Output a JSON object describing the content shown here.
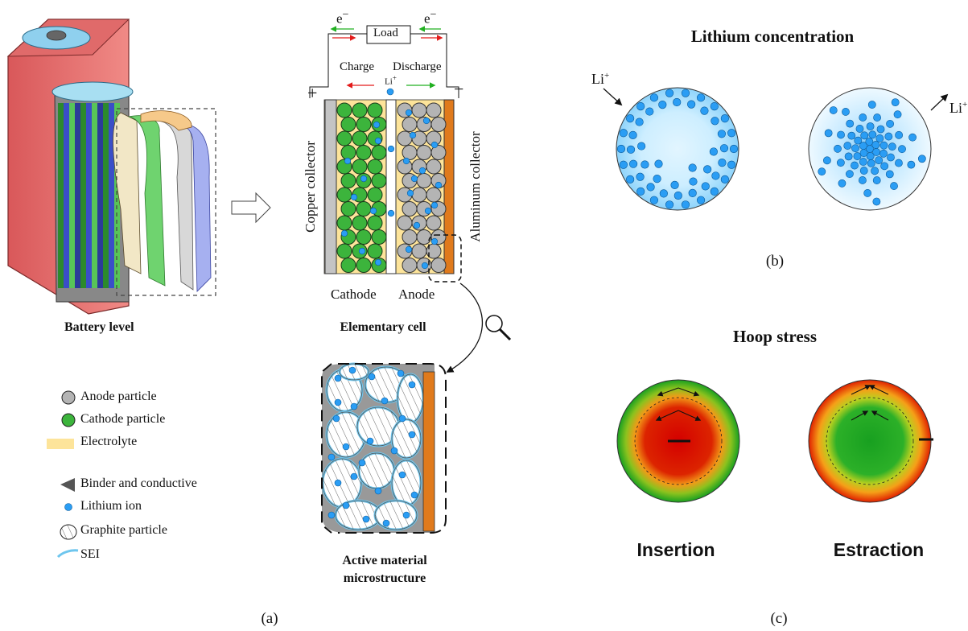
{
  "panel_a": {
    "label": "(a)",
    "battery_level": "Battery level",
    "elementary_cell": "Elementary cell",
    "microstructure": [
      "Active material",
      "microstructure"
    ],
    "circuit": {
      "load": "Load",
      "electron_left": "e",
      "electron_right": "e",
      "charge": "Charge",
      "discharge": "Discharge",
      "li_ion": "Li",
      "plus": "+",
      "minus": "−"
    },
    "copper_collector": "Copper collector",
    "aluminum_collector": "Aluminum collector",
    "cathode": "Cathode",
    "anode": "Anode",
    "legend": [
      {
        "icon": "anode-particle-icon",
        "label": "Anode particle",
        "color": "#b4b4b4"
      },
      {
        "icon": "cathode-particle-icon",
        "label": "Cathode particle",
        "color": "#3cb43c"
      },
      {
        "icon": "electrolyte-icon",
        "label": "Electrolyte",
        "color": "#fde49a"
      },
      {
        "icon": "binder-icon",
        "label": "Binder and conductive",
        "color": "#555555"
      },
      {
        "icon": "lithium-ion-icon",
        "label": "Lithium ion",
        "color": "#2a9df4"
      },
      {
        "icon": "graphite-particle-icon",
        "label": "Graphite particle",
        "color": "#ffffff"
      },
      {
        "icon": "sei-icon",
        "label": "SEI",
        "color": "#6ec6ee"
      }
    ]
  },
  "panel_b": {
    "label": "(b)",
    "title": "Lithium concentration",
    "li_in": "Li",
    "li_out": "Li"
  },
  "panel_c": {
    "label": "(c)",
    "title": "Hoop stress",
    "insertion": "Insertion",
    "extraction": "Estraction"
  },
  "colors": {
    "copper": "#c0c0c0",
    "aluminum": "#e07a1c",
    "electrolyte": "#fde49a",
    "cathode": "#3cb43c",
    "anode": "#b4b4b4",
    "lithium": "#2a9df4",
    "stress_high": "#d40000",
    "stress_low": "#18a020"
  }
}
